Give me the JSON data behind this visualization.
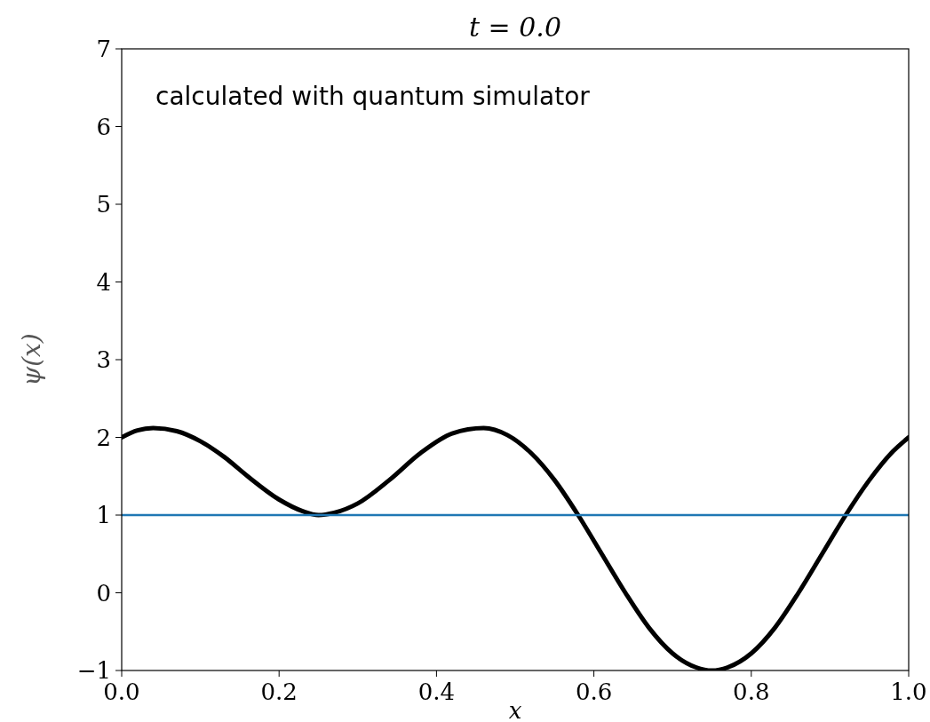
{
  "chart_data": {
    "type": "line",
    "title": "t = 0.0",
    "xlabel": "x",
    "ylabel": "ψ(x)",
    "xlim": [
      0,
      1
    ],
    "ylim": [
      -1,
      7
    ],
    "xticks": [
      {
        "value": 0,
        "label": "0.0"
      },
      {
        "value": 0.2,
        "label": "0.2"
      },
      {
        "value": 0.4,
        "label": "0.4"
      },
      {
        "value": 0.6,
        "label": "0.6"
      },
      {
        "value": 0.8,
        "label": "0.8"
      },
      {
        "value": 1,
        "label": "1.0"
      }
    ],
    "yticks": [
      -1,
      0,
      1,
      2,
      3,
      4,
      5,
      6,
      7
    ],
    "grid": false,
    "annotations": [
      "calculated with quantum simulator"
    ],
    "series": [
      {
        "color": "#000000",
        "x": [
          0,
          0.02,
          0.04,
          0.07,
          0.1,
          0.13,
          0.16,
          0.2,
          0.23,
          0.25,
          0.27,
          0.3,
          0.34,
          0.38,
          0.42,
          0.46,
          0.49,
          0.52,
          0.55,
          0.58,
          0.61,
          0.64,
          0.67,
          0.7,
          0.73,
          0.75,
          0.77,
          0.8,
          0.83,
          0.86,
          0.89,
          0.92,
          0.95,
          0.98,
          1
        ],
        "values": [
          2,
          2.09,
          2.12,
          2.08,
          1.95,
          1.75,
          1.5,
          1.2,
          1.05,
          1.0,
          1.03,
          1.15,
          1.45,
          1.8,
          2.05,
          2.12,
          2.03,
          1.8,
          1.45,
          1.0,
          0.5,
          0.0,
          -0.45,
          -0.78,
          -0.96,
          -1.0,
          -0.96,
          -0.78,
          -0.45,
          0.0,
          0.5,
          1.0,
          1.45,
          1.82,
          2.0
        ]
      },
      {
        "color": "#1f77b4",
        "x": [
          0,
          1
        ],
        "values": [
          1,
          1
        ]
      }
    ]
  }
}
